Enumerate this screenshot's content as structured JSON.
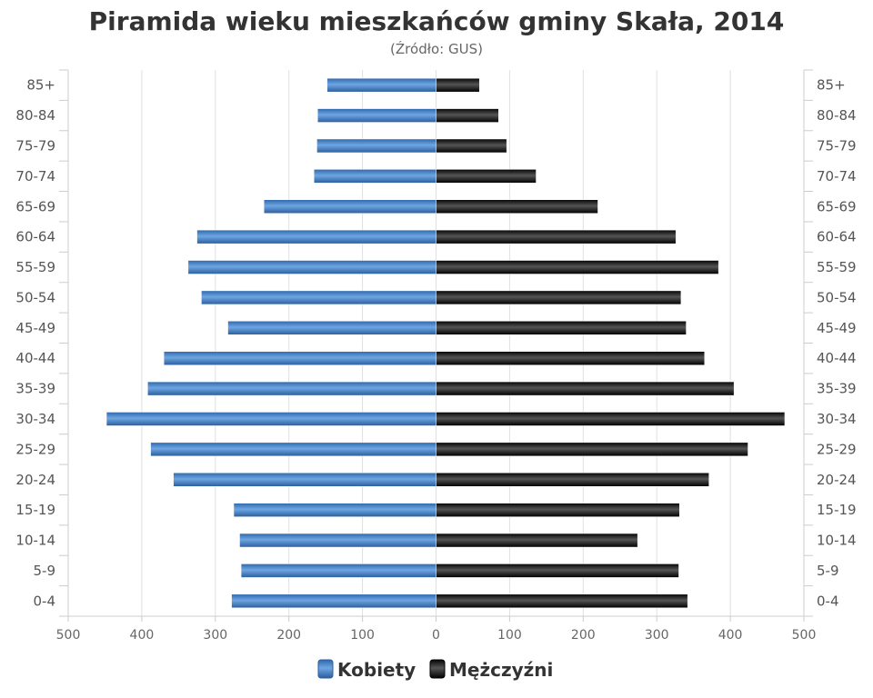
{
  "chart_data": {
    "type": "bar",
    "orientation": "horizontal-population-pyramid",
    "title": "Piramida wieku mieszkańców gminy Skała, 2014",
    "subtitle": "(Źródło: GUS)",
    "categories": [
      "0-4",
      "5-9",
      "10-14",
      "15-19",
      "20-24",
      "25-29",
      "30-34",
      "35-39",
      "40-44",
      "45-49",
      "50-54",
      "55-59",
      "60-64",
      "65-69",
      "70-74",
      "75-79",
      "80-84",
      "85+"
    ],
    "series": [
      {
        "name": "Kobiety",
        "side": "left",
        "color": "#3a78c0",
        "values": [
          278,
          265,
          267,
          275,
          357,
          388,
          448,
          392,
          370,
          283,
          319,
          337,
          325,
          234,
          166,
          162,
          161,
          148
        ]
      },
      {
        "name": "Mężczyźni",
        "side": "right",
        "color": "#1a1a1a",
        "values": [
          342,
          330,
          274,
          331,
          371,
          424,
          474,
          405,
          365,
          340,
          333,
          384,
          326,
          220,
          136,
          96,
          85,
          59
        ]
      }
    ],
    "xlim": [
      -500,
      500
    ],
    "xticks": [
      "500",
      "400",
      "300",
      "200",
      "100",
      "0",
      "100",
      "200",
      "300",
      "400",
      "500"
    ],
    "grid": true,
    "legend": "bottom-center"
  }
}
